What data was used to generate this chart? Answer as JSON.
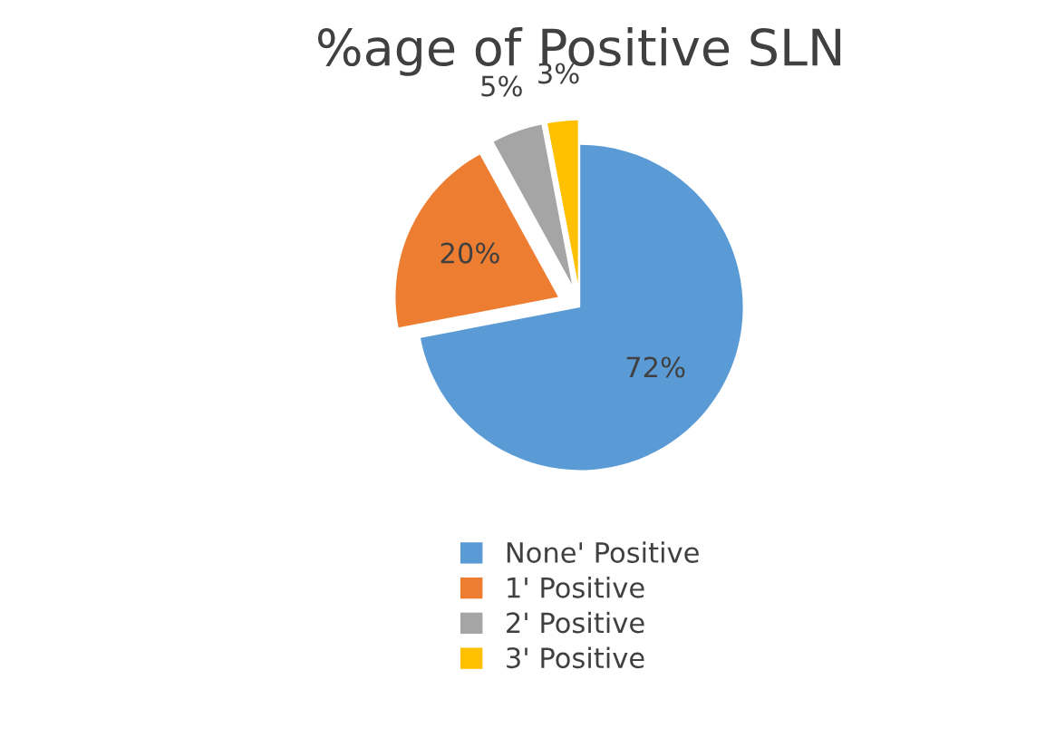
{
  "chart_data": {
    "type": "pie",
    "title": "%age of Positive SLN",
    "categories": [
      "None' Positive",
      "1' Positive",
      "2' Positive",
      "3' Positive"
    ],
    "values": [
      72,
      20,
      5,
      3
    ],
    "value_labels": [
      "72%",
      "20%",
      "5%",
      "3%"
    ],
    "colors": [
      "#5b9bd5",
      "#ed7d31",
      "#a5a5a5",
      "#ffc000"
    ],
    "legend": "bottom"
  }
}
